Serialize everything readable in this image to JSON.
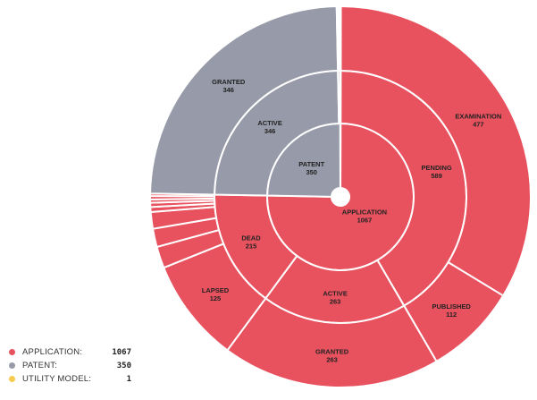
{
  "chart_data": {
    "type": "sunburst",
    "colors": {
      "APPLICATION": "#e8525f",
      "PATENT": "#979aa8",
      "UTILITY MODEL": "#f7cb4d"
    },
    "rings": [
      [
        {
          "id": "application",
          "label": "APPLICATION",
          "value": 1067,
          "group": "APPLICATION"
        },
        {
          "id": "patent",
          "label": "PATENT",
          "value": 350,
          "group": "PATENT"
        },
        {
          "id": "utility",
          "label": "",
          "value": 1,
          "group": "UTILITY MODEL"
        }
      ],
      [
        {
          "id": "pending",
          "parent": "application",
          "label": "PENDING",
          "value": 589,
          "group": "APPLICATION"
        },
        {
          "id": "app-active",
          "parent": "application",
          "label": "ACTIVE",
          "value": 263,
          "group": "APPLICATION"
        },
        {
          "id": "dead",
          "parent": "application",
          "label": "DEAD",
          "value": 215,
          "group": "APPLICATION"
        },
        {
          "id": "pat-active",
          "parent": "patent",
          "label": "ACTIVE",
          "value": 346,
          "group": "PATENT"
        },
        {
          "id": "pat-other",
          "parent": "patent",
          "label": "",
          "value": 4,
          "group": "PATENT"
        },
        {
          "id": "util-1",
          "parent": "utility",
          "label": "",
          "value": 1,
          "group": "UTILITY MODEL"
        }
      ],
      [
        {
          "parent": "pending",
          "label": "EXAMINATION",
          "value": 477,
          "group": "APPLICATION"
        },
        {
          "parent": "pending",
          "label": "PUBLISHED",
          "value": 112,
          "group": "APPLICATION"
        },
        {
          "parent": "app-active",
          "label": "GRANTED",
          "value": 263,
          "group": "APPLICATION"
        },
        {
          "parent": "dead",
          "label": "LAPSED",
          "value": 125,
          "group": "APPLICATION"
        },
        {
          "parent": "dead",
          "label": "",
          "value": 26,
          "group": "APPLICATION"
        },
        {
          "parent": "dead",
          "label": "",
          "value": 22,
          "group": "APPLICATION"
        },
        {
          "parent": "dead",
          "label": "",
          "value": 20,
          "group": "APPLICATION"
        },
        {
          "parent": "dead",
          "label": "",
          "value": 6,
          "group": "APPLICATION"
        },
        {
          "parent": "dead",
          "label": "",
          "value": 5,
          "group": "APPLICATION"
        },
        {
          "parent": "dead",
          "label": "",
          "value": 4,
          "group": "APPLICATION"
        },
        {
          "parent": "dead",
          "label": "",
          "value": 4,
          "group": "APPLICATION"
        },
        {
          "parent": "dead",
          "label": "",
          "value": 3,
          "group": "APPLICATION"
        },
        {
          "parent": "pat-active",
          "label": "GRANTED",
          "value": 346,
          "group": "PATENT"
        },
        {
          "parent": "pat-other",
          "label": "",
          "value": 2,
          "group": "PATENT"
        },
        {
          "parent": "pat-other",
          "label": "",
          "value": 2,
          "group": "PATENT"
        },
        {
          "parent": "util-1",
          "label": "",
          "value": 1,
          "group": "UTILITY MODEL"
        }
      ]
    ],
    "legend": [
      {
        "label": "APPLICATION:",
        "value": "1067",
        "group": "APPLICATION"
      },
      {
        "label": "PATENT:",
        "value": "350",
        "group": "PATENT"
      },
      {
        "label": "UTILITY MODEL:",
        "value": "1",
        "group": "UTILITY MODEL"
      }
    ]
  }
}
